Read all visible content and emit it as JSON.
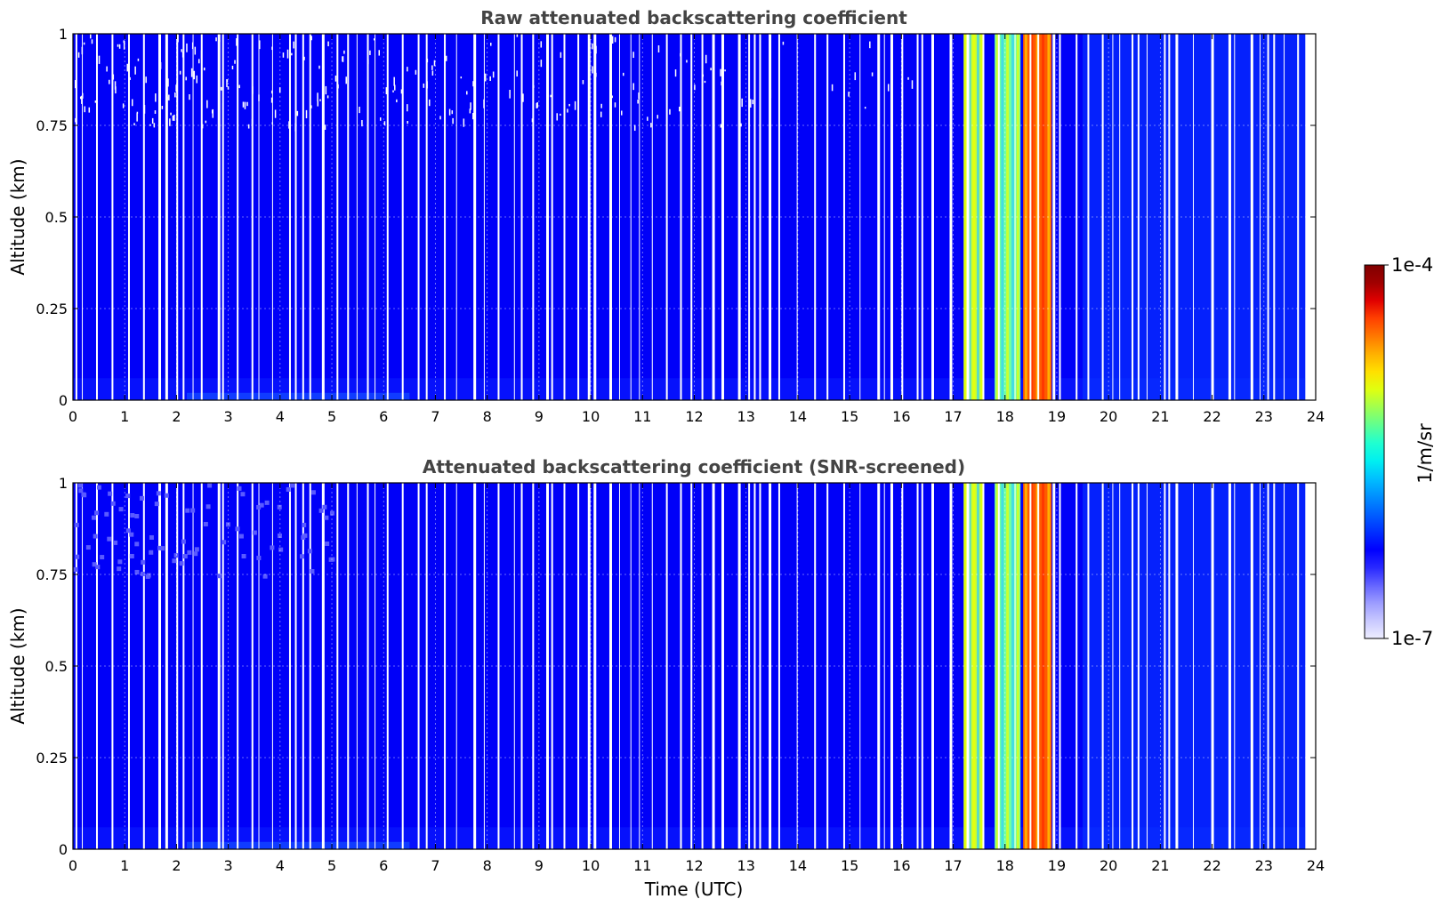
{
  "chart_data": [
    {
      "type": "heatmap",
      "title": "Raw attenuated backscattering coefficient",
      "xlabel": "",
      "ylabel": "Altitude (km)",
      "xlim": [
        0,
        24
      ],
      "ylim": [
        0,
        1
      ],
      "x_ticks": [
        "0",
        "1",
        "2",
        "3",
        "4",
        "5",
        "6",
        "7",
        "8",
        "9",
        "10",
        "11",
        "12",
        "13",
        "14",
        "15",
        "16",
        "17",
        "18",
        "19",
        "20",
        "21",
        "22",
        "23",
        "24"
      ],
      "y_ticks": [
        "0",
        "0.25",
        "0.5",
        "0.75",
        "1"
      ],
      "grid": true,
      "colorscale": "jet",
      "data_end_hour": 23.8,
      "noise_above_km": 0.75,
      "high_signal_periods_utc": [
        {
          "start": 17.2,
          "end": 17.6,
          "level": "yellow-green"
        },
        {
          "start": 17.8,
          "end": 18.3,
          "level": "cyan-yellow"
        },
        {
          "start": 18.35,
          "end": 18.9,
          "level": "orange-red"
        }
      ],
      "background_level": "blue"
    },
    {
      "type": "heatmap",
      "title": "Attenuated backscattering coefficient (SNR-screened)",
      "xlabel": "Time (UTC)",
      "ylabel": "Altitude (km)",
      "xlim": [
        0,
        24
      ],
      "ylim": [
        0,
        1
      ],
      "x_ticks": [
        "0",
        "1",
        "2",
        "3",
        "4",
        "5",
        "6",
        "7",
        "8",
        "9",
        "10",
        "11",
        "12",
        "13",
        "14",
        "15",
        "16",
        "17",
        "18",
        "19",
        "20",
        "21",
        "22",
        "23",
        "24"
      ],
      "y_ticks": [
        "0",
        "0.25",
        "0.5",
        "0.75",
        "1"
      ],
      "grid": true,
      "colorscale": "jet",
      "data_end_hour": 23.8,
      "high_signal_periods_utc": [
        {
          "start": 17.2,
          "end": 17.6,
          "level": "yellow-green"
        },
        {
          "start": 17.8,
          "end": 18.3,
          "level": "cyan-yellow"
        },
        {
          "start": 18.35,
          "end": 18.9,
          "level": "orange-red"
        }
      ],
      "background_level": "blue"
    }
  ],
  "colorbar": {
    "label": "1/m/sr",
    "max_label": "1e-4",
    "min_label": "1e-7",
    "colors": [
      "#eeeeff",
      "#c8c8ff",
      "#9c9cff",
      "#6464ff",
      "#2828ff",
      "#0000ff",
      "#0030ff",
      "#0060ff",
      "#0090ff",
      "#00c0ff",
      "#00f0f0",
      "#20ffd0",
      "#60ff90",
      "#a0ff50",
      "#e0ff10",
      "#ffe000",
      "#ffb000",
      "#ff7800",
      "#ff4000",
      "#e00000",
      "#a00000",
      "#800000"
    ]
  }
}
